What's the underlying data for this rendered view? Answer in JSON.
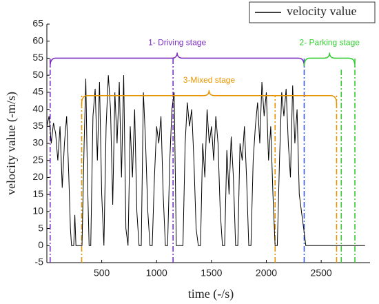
{
  "chart_data": {
    "type": "line",
    "xlabel": "time (-/s)",
    "ylabel": "velocity value (-m/s)",
    "xlim": [
      0,
      2945
    ],
    "xticks": [
      500,
      1000,
      1500,
      2000,
      2500
    ],
    "ylim": [
      -5,
      65
    ],
    "yticks": [
      -5,
      0,
      5,
      10,
      15,
      20,
      25,
      30,
      35,
      40,
      45,
      50,
      55,
      60,
      65
    ],
    "legend": "upper right",
    "x": [
      0,
      20,
      40,
      60,
      80,
      100,
      120,
      140,
      160,
      180,
      200,
      215,
      225,
      245,
      255,
      265,
      300,
      320,
      340,
      355,
      370,
      385,
      400,
      420,
      440,
      460,
      480,
      500,
      520,
      540,
      560,
      580,
      600,
      620,
      640,
      660,
      680,
      700,
      720,
      740,
      760,
      780,
      800,
      820,
      840,
      860,
      880,
      900,
      920,
      940,
      960,
      980,
      1000,
      1020,
      1040,
      1060,
      1080,
      1100,
      1120,
      1140,
      1160,
      1180,
      1200,
      1240,
      1260,
      1280,
      1300,
      1320,
      1340,
      1360,
      1380,
      1400,
      1420,
      1440,
      1460,
      1480,
      1500,
      1520,
      1540,
      1560,
      1580,
      1600,
      1620,
      1640,
      1660,
      1680,
      1700,
      1720,
      1740,
      1760,
      1780,
      1800,
      1820,
      1840,
      1860,
      1880,
      1900,
      1920,
      1940,
      1960,
      1980,
      2000,
      2020,
      2040,
      2060,
      2080,
      2100,
      2120,
      2140,
      2160,
      2180,
      2200,
      2220,
      2240,
      2260,
      2280,
      2300,
      2320,
      2340,
      2360,
      2900
    ],
    "series": [
      {
        "name": "velocity value",
        "color": "#000000",
        "values": [
          35,
          38,
          30,
          36,
          33,
          25,
          35,
          17,
          30,
          38,
          20,
          5,
          0,
          0,
          9,
          0,
          0,
          0,
          30,
          49,
          20,
          0,
          0,
          38,
          46,
          25,
          48,
          15,
          0,
          35,
          50,
          40,
          12,
          45,
          30,
          48,
          20,
          50,
          5,
          0,
          35,
          20,
          40,
          10,
          0,
          0,
          45,
          30,
          10,
          0,
          0,
          20,
          35,
          30,
          38,
          15,
          0,
          0,
          25,
          40,
          45,
          0,
          0,
          0,
          30,
          42,
          35,
          40,
          25,
          5,
          0,
          0,
          30,
          20,
          40,
          30,
          35,
          25,
          38,
          30,
          10,
          0,
          0,
          28,
          15,
          32,
          20,
          0,
          0,
          30,
          25,
          35,
          20,
          0,
          0,
          25,
          35,
          42,
          30,
          48,
          38,
          45,
          25,
          35,
          15,
          0,
          0,
          25,
          45,
          38,
          46,
          30,
          20,
          47,
          30,
          40,
          15,
          10,
          5,
          0,
          0
        ]
      }
    ],
    "annotations": {
      "vlines": [
        {
          "x": 30,
          "top": 55,
          "color": "#7b2fbf"
        },
        {
          "x": 1150,
          "top": 55,
          "color": "#7b2fbf"
        },
        {
          "x": 2345,
          "top": 55,
          "color": "#3a5fcd"
        },
        {
          "x": 317,
          "top": 44,
          "color": "#e69500"
        },
        {
          "x": 2080,
          "top": 44,
          "color": "#e69500"
        },
        {
          "x": 2640,
          "top": 44,
          "color": "#e69500"
        },
        {
          "x": 2683,
          "top": 52,
          "color": "#33cc33"
        },
        {
          "x": 2807,
          "top": 55,
          "color": "#33cc33"
        }
      ],
      "braces": [
        {
          "label": "1- Driving stage",
          "x": [
            30,
            2345
          ],
          "y": 55,
          "color": "#7b2fbf"
        },
        {
          "label": "3-Mixed stage",
          "x": [
            317,
            2640
          ],
          "y": 44,
          "color": "#e69500"
        },
        {
          "label": "2- Parking stage",
          "x": [
            2345,
            2807
          ],
          "y": 55,
          "color": "#33cc33"
        }
      ]
    }
  }
}
